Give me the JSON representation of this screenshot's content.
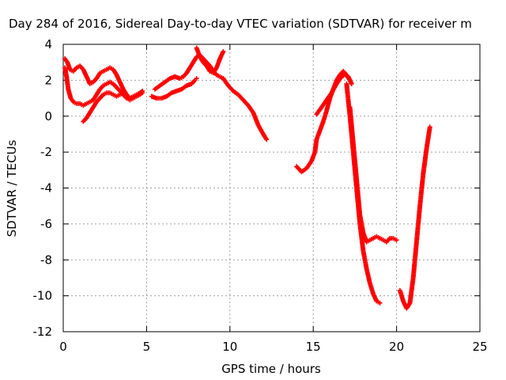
{
  "chart_data": {
    "type": "scatter",
    "title": "Day 284 of 2016, Sidereal Day-to-day VTEC variation (SDTVAR) for receiver m",
    "xlabel": "GPS time / hours",
    "ylabel": "SDTVAR / TECUs",
    "xlim": [
      0,
      25
    ],
    "ylim": [
      -12,
      4
    ],
    "xticks": [
      0,
      5,
      10,
      15,
      20,
      25
    ],
    "yticks": [
      -12,
      -10,
      -8,
      -6,
      -4,
      -2,
      0,
      2,
      4
    ],
    "grid": true,
    "marker": "+",
    "color": "#ff0000",
    "series": [
      {
        "x": [
          0.1,
          0.25,
          0.4,
          0.6,
          0.8,
          1.0,
          1.2,
          1.4,
          1.6,
          1.8,
          2.0,
          2.2,
          2.4,
          2.6,
          2.8,
          3.0,
          3.2,
          3.4,
          3.6,
          3.8,
          4.0,
          4.2,
          4.4,
          4.6,
          4.75
        ],
        "y": [
          3.2,
          3.0,
          2.6,
          2.5,
          2.7,
          2.8,
          2.6,
          2.2,
          1.8,
          1.9,
          2.1,
          2.4,
          2.5,
          2.6,
          2.7,
          2.6,
          2.3,
          1.9,
          1.5,
          1.2,
          1.0,
          1.1,
          1.2,
          1.3,
          1.4
        ]
      },
      {
        "x": [
          0.1,
          0.2,
          0.3,
          0.45,
          0.6,
          0.8,
          1.0,
          1.2,
          1.4,
          1.6,
          1.8,
          2.0,
          2.2,
          2.4,
          2.6,
          2.8,
          3.0,
          3.2,
          3.4,
          3.6,
          3.8,
          4.0,
          4.2,
          4.4,
          4.6,
          4.75
        ],
        "y": [
          2.7,
          2.2,
          1.5,
          1.0,
          0.8,
          0.7,
          0.7,
          0.6,
          0.7,
          0.8,
          0.9,
          1.2,
          1.5,
          1.7,
          1.8,
          1.9,
          1.8,
          1.6,
          1.4,
          1.2,
          1.0,
          0.9,
          1.0,
          1.1,
          1.2,
          1.3
        ]
      },
      {
        "x": [
          1.2,
          1.4,
          1.6,
          1.8,
          2.0,
          2.2,
          2.4,
          2.6,
          2.8,
          3.0,
          3.2,
          3.4,
          3.6
        ],
        "y": [
          -0.3,
          -0.1,
          0.2,
          0.5,
          0.8,
          1.0,
          1.2,
          1.3,
          1.3,
          1.2,
          1.1,
          1.2,
          1.3
        ]
      },
      {
        "x": [
          5.3,
          5.6,
          5.9,
          6.2,
          6.5,
          6.8,
          7.1,
          7.4,
          7.7,
          7.9,
          8.0
        ],
        "y": [
          1.1,
          1.0,
          1.0,
          1.1,
          1.3,
          1.4,
          1.5,
          1.7,
          1.8,
          2.0,
          2.1
        ]
      },
      {
        "x": [
          5.5,
          5.8,
          6.1,
          6.4,
          6.7,
          7.0,
          7.2,
          7.4,
          7.6,
          7.8,
          8.0,
          8.2,
          8.4,
          8.6,
          8.8,
          9.0,
          9.2,
          9.4,
          9.6
        ],
        "y": [
          1.5,
          1.7,
          1.9,
          2.1,
          2.2,
          2.1,
          2.2,
          2.4,
          2.7,
          3.0,
          3.3,
          3.4,
          3.2,
          3.0,
          2.8,
          2.5,
          2.3,
          2.2,
          2.1
        ]
      },
      {
        "x": [
          8.0,
          8.2,
          8.4,
          8.6,
          8.8,
          9.0,
          9.2,
          9.4,
          9.6
        ],
        "y": [
          3.8,
          3.3,
          3.0,
          2.8,
          2.5,
          2.4,
          2.7,
          3.2,
          3.6
        ]
      },
      {
        "x": [
          9.6,
          9.9,
          10.2,
          10.5,
          10.8,
          11.1,
          11.4,
          11.7,
          12.0,
          12.2
        ],
        "y": [
          2.1,
          1.7,
          1.4,
          1.2,
          0.9,
          0.6,
          0.2,
          -0.5,
          -1.0,
          -1.3
        ]
      },
      {
        "x": [
          14.0,
          14.3,
          14.6,
          14.9,
          15.1,
          15.2,
          15.4,
          15.6,
          15.8,
          16.0,
          16.2,
          16.4,
          16.6,
          16.8,
          17.0,
          17.2
        ],
        "y": [
          -2.8,
          -3.1,
          -2.9,
          -2.5,
          -2.0,
          -1.3,
          -0.8,
          -0.3,
          0.3,
          1.0,
          1.5,
          2.0,
          2.3,
          2.5,
          2.3,
          2.0
        ]
      },
      {
        "x": [
          15.2,
          15.5,
          15.8,
          16.1,
          16.4,
          16.7,
          16.9,
          17.1,
          17.3
        ],
        "y": [
          0.1,
          0.5,
          0.9,
          1.3,
          1.8,
          2.2,
          2.3,
          2.2,
          1.8
        ]
      },
      {
        "x": [
          17.0,
          17.2,
          17.4,
          17.6,
          17.8,
          18.0,
          18.2,
          18.4,
          18.6,
          18.8,
          19.0
        ],
        "y": [
          1.8,
          0.0,
          -2.0,
          -4.0,
          -6.0,
          -7.5,
          -8.5,
          -9.3,
          -9.9,
          -10.3,
          -10.4
        ]
      },
      {
        "x": [
          17.2,
          17.4,
          17.6,
          17.8,
          18.0,
          18.2,
          18.4,
          18.6,
          18.8,
          19.0,
          19.2,
          19.4,
          19.6,
          19.8,
          20.0
        ],
        "y": [
          0.5,
          -1.5,
          -3.5,
          -5.5,
          -6.5,
          -7.0,
          -6.9,
          -6.8,
          -6.7,
          -6.8,
          -6.9,
          -7.0,
          -6.8,
          -6.8,
          -6.9
        ]
      },
      {
        "x": [
          20.2,
          20.4,
          20.6,
          20.8,
          21.0,
          21.2,
          21.4,
          21.6,
          21.8,
          22.0
        ],
        "y": [
          -9.7,
          -10.3,
          -10.7,
          -10.4,
          -9.0,
          -7.0,
          -5.0,
          -3.2,
          -1.8,
          -0.6
        ]
      }
    ]
  }
}
